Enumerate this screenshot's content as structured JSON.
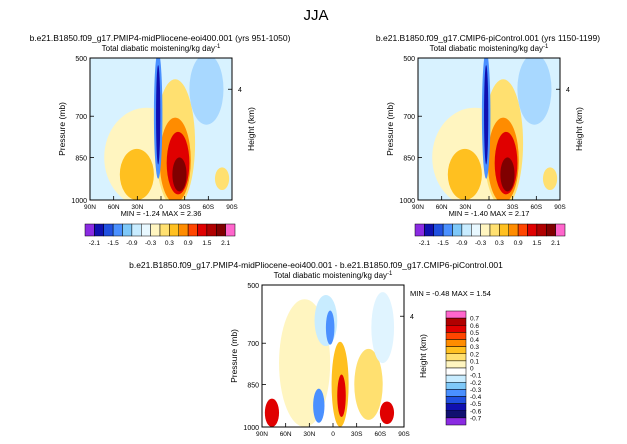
{
  "page_title": "JJA",
  "panels": [
    {
      "id": "left",
      "run_title": "b.e21.B1850.f09_g17.PMIP4-midPliocene-eoi400.001 (yrs 951-1050)",
      "variable_title": "Total diabatic moistening/kg day",
      "variable_exp": "-1",
      "stats": "MIN = -1.24 MAX = 2.36"
    },
    {
      "id": "right",
      "run_title": "b.e21.B1850.f09_g17.CMIP6-piControl.001 (yrs 1150-1199)",
      "variable_title": "Total diabatic moistening/kg day",
      "variable_exp": "-1",
      "stats": "MIN = -1.40 MAX = 2.17"
    },
    {
      "id": "diff",
      "run_title": "b.e21.B1850.f09_g17.PMIP4-midPliocene-eoi400.001 - b.e21.B1850.f09_g17.CMIP6-piControl.001",
      "variable_title": "Total diabatic moistening/kg day",
      "variable_exp": "-1",
      "stats": "MIN = -0.48 MAX = 1.54"
    }
  ],
  "axes": {
    "ylabel": "Pressure (mb)",
    "y2label": "Height (km)",
    "yticks": [
      "500",
      "700",
      "850",
      "1000"
    ],
    "y2tick": "4",
    "xticks": [
      "90N",
      "60N",
      "30N",
      "0",
      "30S",
      "60S",
      "90S"
    ]
  },
  "colorbars": {
    "main": {
      "labels": [
        "-2.1",
        "-1.5",
        "-0.9",
        "-0.3",
        "0.3",
        "0.9",
        "1.5",
        "2.1"
      ],
      "colors": [
        "#8a2be2",
        "#1010b0",
        "#2050e0",
        "#4a90ff",
        "#7ec8f8",
        "#c8ecff",
        "#e8f8ff",
        "#fff5c0",
        "#ffe070",
        "#ffc020",
        "#ff8c00",
        "#ff4500",
        "#e00000",
        "#b00000",
        "#800000",
        "#ff66cc"
      ]
    },
    "diff": {
      "labels": [
        "0.7",
        "0.6",
        "0.5",
        "0.4",
        "0.3",
        "0.2",
        "0.1",
        "0",
        "-0.1",
        "-0.2",
        "-0.3",
        "-0.4",
        "-0.5",
        "-0.6",
        "-0.7"
      ],
      "colors": [
        "#ff66cc",
        "#b00000",
        "#e00000",
        "#ff4500",
        "#ff8c00",
        "#ffc020",
        "#ffe070",
        "#fff5c0",
        "#ffffff",
        "#c8ecff",
        "#7ec8f8",
        "#4a90ff",
        "#2050e0",
        "#1010b0",
        "#101070",
        "#8a2be2"
      ]
    }
  },
  "chart_data": [
    {
      "type": "heatmap",
      "title": "Total diabatic moistening/kg day-1",
      "xlabel": "",
      "ylabel": "Pressure (mb)",
      "x": [
        "90N",
        "60N",
        "30N",
        "0",
        "30S",
        "60S",
        "90S"
      ],
      "y": [
        500,
        700,
        850,
        1000
      ],
      "min": -1.24,
      "max": 2.36
    },
    {
      "type": "heatmap",
      "title": "Total diabatic moistening/kg day-1",
      "xlabel": "",
      "ylabel": "Pressure (mb)",
      "x": [
        "90N",
        "60N",
        "30N",
        "0",
        "30S",
        "60S",
        "90S"
      ],
      "y": [
        500,
        700,
        850,
        1000
      ],
      "min": -1.4,
      "max": 2.17
    },
    {
      "type": "heatmap",
      "title": "Total diabatic moistening/kg day-1",
      "xlabel": "",
      "ylabel": "Pressure (mb)",
      "x": [
        "90N",
        "60N",
        "30N",
        "0",
        "30S",
        "60S",
        "90S"
      ],
      "y": [
        500,
        700,
        850,
        1000
      ],
      "min": -0.48,
      "max": 1.54
    }
  ]
}
